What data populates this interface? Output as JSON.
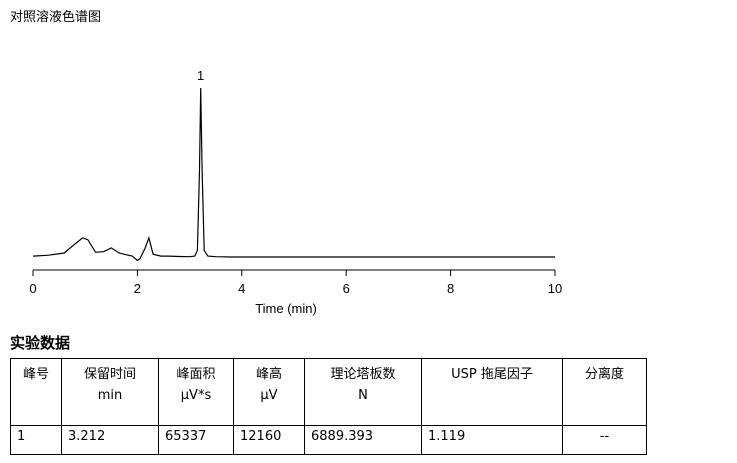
{
  "page_title": "对照溶液色谱图",
  "section_title": "实验数据",
  "chart_data": {
    "type": "line",
    "xlabel": "Time (min)",
    "ylabel": "",
    "xlim": [
      0,
      10
    ],
    "xticks": [
      0,
      2,
      4,
      6,
      8,
      10
    ],
    "grid": false,
    "series": [
      {
        "x": [
          0,
          0.3,
          0.6,
          0.8,
          0.95,
          1.05,
          1.2,
          1.35,
          1.5,
          1.65,
          1.8,
          1.9,
          2.0,
          2.05,
          2.15,
          2.22,
          2.3,
          2.45,
          2.6,
          2.8,
          3.0,
          3.1,
          3.15,
          3.19,
          3.212,
          3.24,
          3.28,
          3.35,
          3.5,
          3.8,
          4.2,
          5,
          6,
          7,
          8,
          9,
          10
        ],
        "y": [
          1.5,
          2.2,
          4.0,
          11.0,
          16.0,
          14.5,
          4.5,
          5.0,
          8.0,
          4.0,
          2.5,
          1.5,
          -2.0,
          -0.5,
          8.0,
          16.0,
          3.0,
          1.5,
          1.5,
          1.2,
          1.0,
          1.5,
          6.0,
          70.0,
          135.0,
          70.0,
          6.0,
          1.5,
          1.0,
          0.8,
          0.8,
          0.8,
          0.8,
          0.8,
          0.8,
          0.8,
          0.8
        ]
      }
    ],
    "peak_labels": [
      {
        "label": "1",
        "x": 3.212,
        "y": 135.0
      }
    ]
  },
  "table": {
    "headers": [
      {
        "name": "峰号",
        "unit": ""
      },
      {
        "name": "保留时间",
        "unit": "min"
      },
      {
        "name": "峰面积",
        "unit": "μV*s"
      },
      {
        "name": "峰高",
        "unit": "μV"
      },
      {
        "name": "理论塔板数",
        "unit": "N"
      },
      {
        "name": "USP 拖尾因子",
        "unit": ""
      },
      {
        "name": "分离度",
        "unit": ""
      }
    ],
    "rows": [
      [
        "1",
        "3.212",
        "65337",
        "12160",
        "6889.393",
        "1.119",
        "--"
      ]
    ]
  }
}
